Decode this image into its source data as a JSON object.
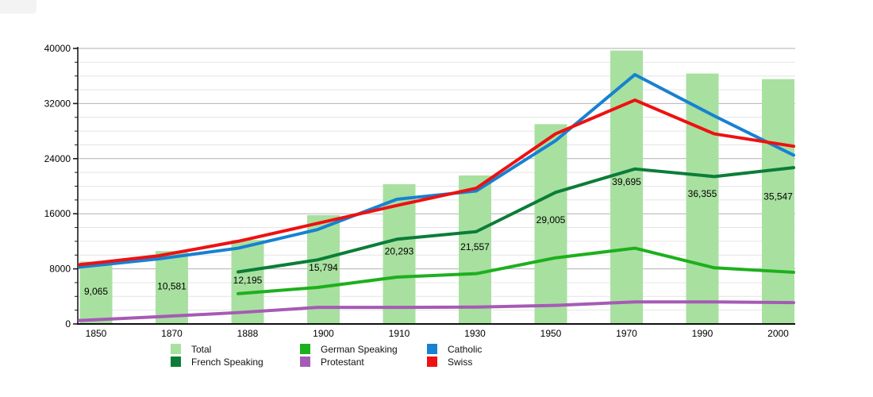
{
  "page": {
    "background": "#ffffff",
    "title": ""
  },
  "chart_data": {
    "type": "bar+line",
    "title": "",
    "xlabel": "",
    "ylabel": "",
    "categories": [
      "1850",
      "1870",
      "1888",
      "1900",
      "1910",
      "1930",
      "1950",
      "1970",
      "1990",
      "2000"
    ],
    "bars": {
      "name": "Total",
      "color": "#a8e0a0",
      "values": [
        9065,
        10581,
        12195,
        15794,
        20293,
        21557,
        29005,
        39695,
        36355,
        35547
      ],
      "labels": [
        "9,065",
        "10,581",
        "12,195",
        "15,794",
        "20,293",
        "21,557",
        "29,005",
        "39,695",
        "36,355",
        "35,547"
      ]
    },
    "line_series": [
      {
        "name": "Protestant",
        "color": "#a55bb5",
        "values": [
          500,
          1050,
          1650,
          2400,
          2400,
          2450,
          2700,
          3200,
          3200,
          3100
        ]
      },
      {
        "name": "German Speaking",
        "color": "#1db01d",
        "values": [
          null,
          null,
          4400,
          5300,
          6800,
          7300,
          9600,
          11000,
          8150,
          7500
        ]
      },
      {
        "name": "French Speaking",
        "color": "#0b7d38",
        "values": [
          null,
          null,
          7550,
          9300,
          12300,
          13400,
          19100,
          22500,
          21400,
          22700
        ]
      },
      {
        "name": "Catholic",
        "color": "#1781d2",
        "values": [
          8250,
          9450,
          11000,
          13700,
          18100,
          19300,
          26600,
          36200,
          30200,
          24500
        ]
      },
      {
        "name": "Swiss",
        "color": "#ee1111",
        "values": [
          8600,
          9900,
          12000,
          14600,
          17200,
          19700,
          27600,
          32500,
          27600,
          25800
        ]
      }
    ],
    "y_axis": {
      "min": 0,
      "max": 40000,
      "major_step": 8000,
      "minor_step": 2000,
      "tick_labels": [
        "0",
        "8000",
        "16000",
        "24000",
        "32000",
        "40000"
      ]
    },
    "grid": {
      "shown": true,
      "minor_color": "#e4e4e4",
      "major_color": "#b2b2b2"
    },
    "axis_color": "#1a1a1a",
    "text_color": "#000000",
    "legend": {
      "position": "bottom",
      "items": [
        {
          "label": "Total",
          "color": "#a8e0a0"
        },
        {
          "label": "French Speaking",
          "color": "#0b7d38"
        },
        {
          "label": "German Speaking",
          "color": "#1db01d"
        },
        {
          "label": "Protestant",
          "color": "#a55bb5"
        },
        {
          "label": "Catholic",
          "color": "#1781d2"
        },
        {
          "label": "Swiss",
          "color": "#ee1111"
        }
      ]
    }
  }
}
